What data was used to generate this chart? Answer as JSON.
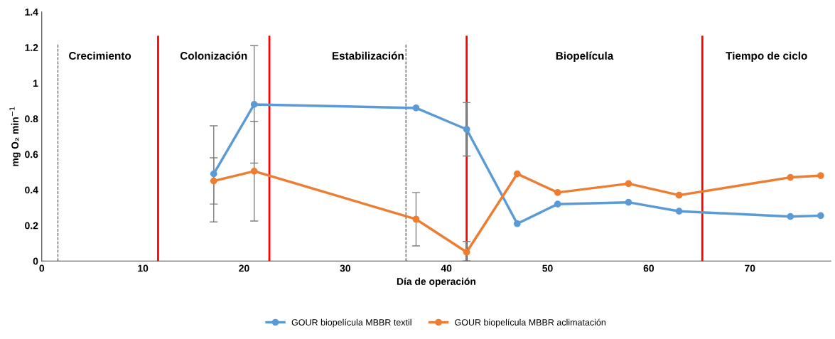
{
  "chart_data": {
    "type": "line",
    "xlabel": "Día de operación",
    "ylabel": "mg O₂ min$^{−1}$",
    "xlim": [
      0,
      78
    ],
    "xticks": [
      0,
      10,
      20,
      30,
      40,
      50,
      60,
      70
    ],
    "ylim": [
      0,
      1.4
    ],
    "yticks": [
      0,
      {
        "value": 0.2,
        "label": "0.2"
      },
      {
        "value": 0.4,
        "label": "0.4"
      },
      {
        "value": 0.6,
        "label": "0.6"
      },
      {
        "value": 0.8,
        "label": "0.8"
      },
      1,
      {
        "value": 1.2,
        "label": "1.2"
      },
      {
        "value": 1.4,
        "label": "1.4"
      }
    ],
    "x": [
      17,
      21,
      37,
      42,
      47,
      51,
      58,
      63,
      74,
      77
    ],
    "series": [
      {
        "name": "GOUR biopelícula MBBR textil",
        "color": "#5b9bd5",
        "values": [
          0.49,
          0.88,
          0.86,
          0.74,
          0.21,
          0.32,
          0.33,
          0.28,
          0.25,
          0.255
        ],
        "errors": [
          0.27,
          0.33,
          null,
          0.15,
          null,
          null,
          null,
          null,
          null,
          null
        ]
      },
      {
        "name": "GOUR biopelícula MBBR aclimatación",
        "color": "#ed7d31",
        "values": [
          0.45,
          0.505,
          0.235,
          0.05,
          0.49,
          0.385,
          0.435,
          0.37,
          0.47,
          0.48
        ],
        "errors": [
          0.13,
          0.28,
          0.15,
          [
            0.0,
            0.11
          ],
          null,
          null,
          null,
          null,
          null,
          null
        ]
      }
    ],
    "ref_lines": [
      {
        "axis": "x",
        "value": 1.6,
        "color": "#404040",
        "line_style": "dashed"
      },
      {
        "axis": "x",
        "value": 11.5,
        "color": "#ff0000",
        "line_style": "solid"
      },
      {
        "axis": "x",
        "value": 22.5,
        "color": "#ff0000",
        "line_style": "solid"
      },
      {
        "axis": "x",
        "value": 36,
        "color": "#404040",
        "line_style": "dashed"
      },
      {
        "axis": "x",
        "value": 42,
        "color": "#ff0000",
        "line_style": "solid"
      },
      {
        "axis": "x",
        "value": 65.3,
        "color": "#ff0000",
        "line_style": "solid"
      }
    ],
    "annotations": [
      "Crecimiento",
      "Colonización",
      "Estabilización",
      "Biopelícula",
      "Tiempo de ciclo"
    ],
    "marker": "circle",
    "line_style": "solid",
    "grid": false,
    "legend": "bottom"
  }
}
